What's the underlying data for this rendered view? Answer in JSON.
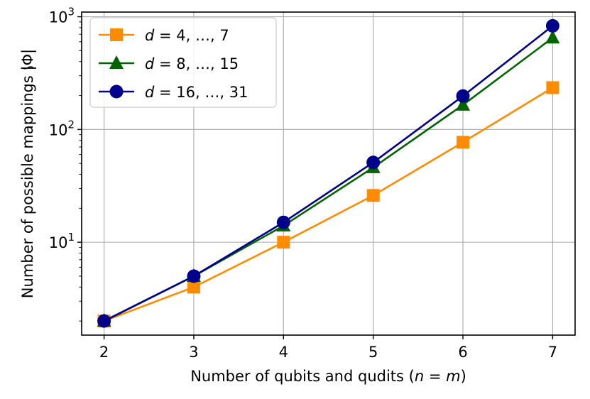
{
  "chart_data": {
    "type": "line",
    "x": [
      2,
      3,
      4,
      5,
      6,
      7
    ],
    "xlabel": "Number of qubits and qudits (n = m)",
    "xlabel_prefix": "Number of qubits and qudits (",
    "xlabel_n": "n",
    "xlabel_eq": " = ",
    "xlabel_m": "m",
    "xlabel_suffix": ")",
    "ylabel": "Number of possible mappings |Φ̃|",
    "ylabel_text": "Number of possible mappings |",
    "ylabel_phi": "Φ",
    "ylabel_end": "|",
    "yscale": "log",
    "xlim": [
      1.75,
      7.25
    ],
    "ylim": [
      1.5,
      1100
    ],
    "xticks": [
      "2",
      "3",
      "4",
      "5",
      "6",
      "7"
    ],
    "yticks": [
      {
        "value": 10,
        "base": "10",
        "exp": "1"
      },
      {
        "value": 100,
        "base": "10",
        "exp": "2"
      },
      {
        "value": 1000,
        "base": "10",
        "exp": "3"
      }
    ],
    "grid": true,
    "legend_position": "top-left",
    "series": [
      {
        "name": "d = 4, ..., 7",
        "legend_var": "d",
        "legend_rest": " = 4, …, 7",
        "color": "#ff8c00",
        "marker": "square",
        "values": [
          2,
          4,
          10,
          26,
          77,
          235
        ]
      },
      {
        "name": "d = 8, ..., 15",
        "legend_var": "d",
        "legend_rest": " = 8, …, 15",
        "color": "#006400",
        "marker": "triangle",
        "values": [
          2,
          5,
          14,
          46,
          165,
          650
        ]
      },
      {
        "name": "d = 16, ..., 31",
        "legend_var": " d",
        "legend_rest": " = 16, …, 31",
        "color": "#00008b",
        "marker": "circle",
        "values": [
          2,
          5,
          15,
          51,
          198,
          830
        ]
      }
    ]
  }
}
